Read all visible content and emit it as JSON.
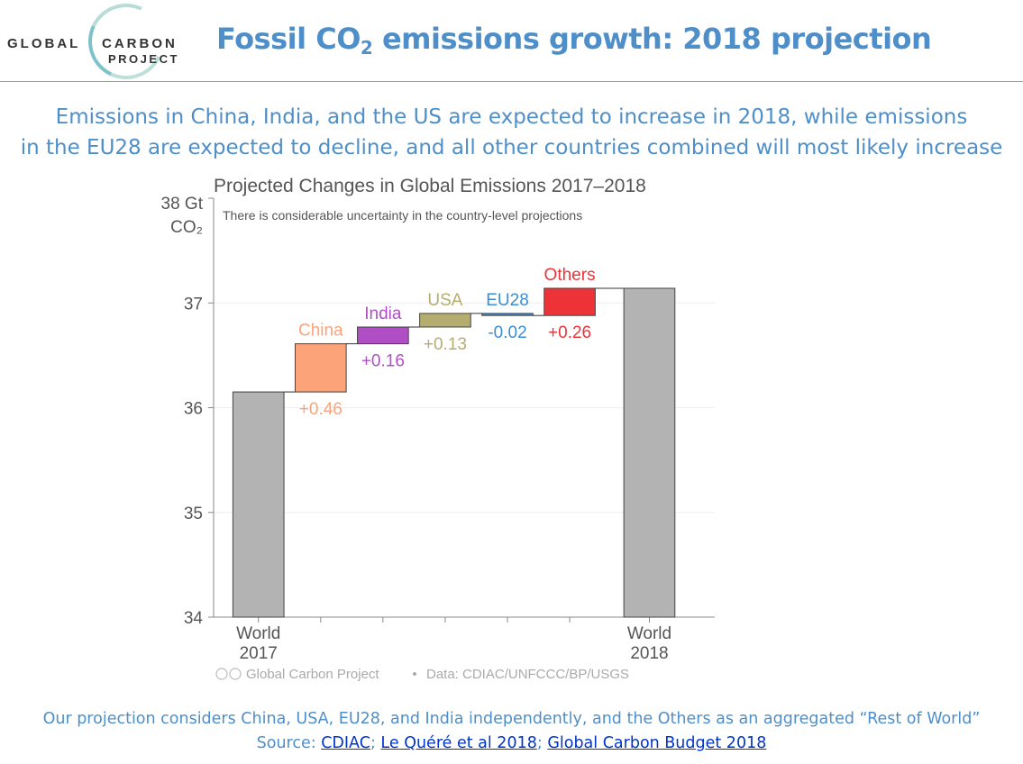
{
  "logo": {
    "line1": "GLOBAL",
    "line2": "CARBON",
    "line3": "PROJECT"
  },
  "slide": {
    "title_main": "Fossil CO",
    "title_sub": "2",
    "title_rest": " emissions growth: 2018 projection",
    "subtitle_line1": "Emissions in China, India, and the US are expected to increase in 2018, while emissions",
    "subtitle_line2": "in the EU28 are expected to decline, and all other countries combined will most likely increase"
  },
  "footer": {
    "line1": "Our projection considers China, USA, EU28, and India independently, and the Others as an aggregated “Rest of World”",
    "source_label": "Source: ",
    "links": [
      "CDIAC",
      "Le Quéré et al 2018",
      "Global Carbon Budget 2018"
    ],
    "separator": "; "
  },
  "chart_data": {
    "type": "bar",
    "subtype": "waterfall",
    "title": "Projected Changes in Global Emissions 2017–2018",
    "annotation": "There is considerable uncertainty in the country-level projections",
    "ylabel_line1": "38 Gt",
    "ylabel_line2": "CO₂",
    "ylim": [
      34,
      38
    ],
    "yticks": [
      34,
      35,
      36,
      37
    ],
    "start": {
      "label_line1": "World",
      "label_line2": "2017",
      "value": 36.15
    },
    "end": {
      "label_line1": "World",
      "label_line2": "2018",
      "value": 37.14
    },
    "steps": [
      {
        "name": "China",
        "delta": 0.46,
        "delta_label": "+0.46",
        "color": "#fca37a"
      },
      {
        "name": "India",
        "delta": 0.16,
        "delta_label": "+0.16",
        "color": "#b04fc5"
      },
      {
        "name": "USA",
        "delta": 0.13,
        "delta_label": "+0.13",
        "color": "#b5ad6f"
      },
      {
        "name": "EU28",
        "delta": -0.02,
        "delta_label": "-0.02",
        "color": "#3b8ed3"
      },
      {
        "name": "Others",
        "delta": 0.26,
        "delta_label": "+0.26",
        "color": "#ee3338"
      }
    ],
    "world_color": "#b3b3b3",
    "credit": "Global Carbon Project",
    "credit_data": "Data: CDIAC/UNFCCC/BP/USGS",
    "credit_sep": "•"
  }
}
